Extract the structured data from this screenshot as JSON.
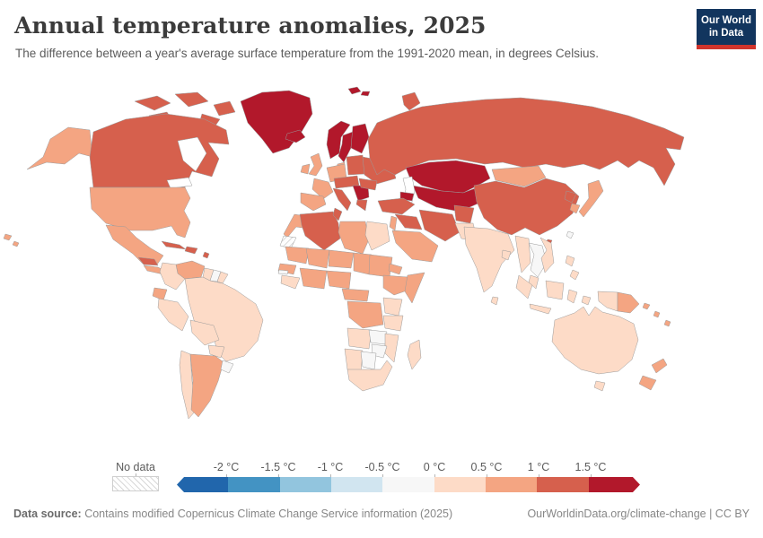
{
  "header": {
    "title": "Annual temperature anomalies, 2025",
    "subtitle": "The difference between a year's average surface temperature from the 1991-2020 mean, in degrees Celsius.",
    "logo": {
      "line1": "Our World",
      "line2": "in Data",
      "bg_color": "#12355e",
      "accent_color": "#d0342c"
    }
  },
  "legend": {
    "no_data_label": "No data",
    "tick_labels": [
      "-2 °C",
      "-1.5 °C",
      "-1 °C",
      "-0.5 °C",
      "0 °C",
      "0.5 °C",
      "1 °C",
      "1.5 °C"
    ],
    "colors": [
      "#2166ac",
      "#4393c3",
      "#92c5de",
      "#d1e5f0",
      "#f7f7f7",
      "#fddbc7",
      "#f4a582",
      "#d6604d",
      "#b2182b"
    ]
  },
  "footer": {
    "source_label": "Data source:",
    "source_text": " Contains modified Copernicus Climate Change Service information (2025)",
    "credit": "OurWorldinData.org/climate-change | CC BY"
  },
  "chart_data": {
    "type": "heatmap",
    "variant": "world-choropleth",
    "title": "Annual temperature anomalies, 2025",
    "unit": "°C",
    "value_label": "Difference from 1991-2020 mean surface temperature",
    "bin_edges": [
      -2,
      -1.5,
      -1,
      -0.5,
      0,
      0.5,
      1,
      1.5
    ],
    "bin_colors": [
      "#2166ac",
      "#4393c3",
      "#92c5de",
      "#d1e5f0",
      "#f7f7f7",
      "#fddbc7",
      "#f4a582",
      "#d6604d",
      "#b2182b"
    ],
    "legend_position": "bottom",
    "no_data": {
      "label": "No data",
      "style": "diagonal-hatch",
      "regions": [
        "Western Sahara"
      ]
    },
    "regions_by_bin": {
      "above_1.5C": [
        "Greenland",
        "Iceland",
        "Svalbard",
        "Norway",
        "Sweden",
        "Finland",
        "Kazakhstan",
        "Uzbekistan",
        "Turkmenistan",
        "Kyrgyzstan",
        "Tajikistan",
        "Caucasus states",
        "Central Balkans"
      ],
      "1_to_1.5C": [
        "Canada",
        "Russia",
        "China",
        "Mongolia-excluded",
        "Algeria",
        "Tunisia",
        "Turkey",
        "Syria",
        "Iraq",
        "Iran",
        "Afghanistan",
        "Poland",
        "Baltic states",
        "Belarus",
        "Ukraine",
        "Romania",
        "Hungary region",
        "Italy",
        "Greece",
        "Cuba",
        "Hispaniola",
        "Guatemala",
        "Honduras",
        "North Korea",
        "Novaya Zemlya"
      ],
      "0.5_to_1C": [
        "United States",
        "Alaska",
        "Hawaii",
        "Mexico",
        "Nicaragua",
        "Costa Rica",
        "Panama",
        "Venezuela",
        "Ecuador",
        "Argentina",
        "United Kingdom",
        "Ireland",
        "France",
        "Spain",
        "Portugal",
        "Germany",
        "Denmark",
        "Levant",
        "Saudi Arabia",
        "Yemen",
        "Mongolia",
        "South Korea",
        "Japan",
        "Nepal",
        "Papua New Guinea",
        "Pacific islands",
        "New Zealand",
        "Morocco",
        "Mauritania",
        "Senegal",
        "Mali",
        "Niger",
        "Chad",
        "Sudan",
        "Libya",
        "Nigeria",
        "Ghana coast",
        "Eritrea",
        "Ethiopia",
        "Somalia",
        "Cameroon",
        "Central African Republic",
        "DR Congo"
      ],
      "0_to_0.5C": [
        "Colombia",
        "Guyana",
        "French Guiana",
        "Peru",
        "Brazil",
        "Bolivia",
        "Paraguay",
        "Chile",
        "Egypt",
        "Guinea",
        "Kenya",
        "Uganda",
        "Tanzania",
        "Angola",
        "Mozambique",
        "Namibia",
        "South Africa",
        "Madagascar",
        "Pakistan",
        "India",
        "Sri Lanka",
        "Bangladesh",
        "Myanmar",
        "Vietnam",
        "Malaysia",
        "Philippines",
        "Indonesia",
        "Australia",
        "Tasmania"
      ],
      "minus0.5_to_0C": [
        "Uruguay",
        "Suriname",
        "Gambia",
        "Zambia",
        "Zimbabwe",
        "Botswana",
        "Thailand",
        "Laos",
        "Cambodia",
        "Taiwan"
      ]
    }
  },
  "map": {
    "border_color": "#9b9b9b",
    "ocean_color": "#ffffff",
    "region_colors": {
      "alaska": "#f4a582",
      "canadian_arctic": "#d6604d",
      "canada": "#d6604d",
      "greenland": "#b2182b",
      "iceland": "#b2182b",
      "usa": "#f4a582",
      "hawaii": "#f4a582",
      "mexico": "#f4a582",
      "guatemala_honduras": "#d6604d",
      "nicaragua_panama": "#f4a582",
      "cuba": "#d6604d",
      "hispaniola": "#d6604d",
      "lesser_antilles": "#d6604d",
      "venezuela": "#f4a582",
      "colombia": "#fddbc7",
      "guyana": "#fddbc7",
      "suriname": "#f7f7f7",
      "french_guiana": "#fddbc7",
      "ecuador": "#f4a582",
      "peru": "#fddbc7",
      "brazil": "#fddbc7",
      "bolivia": "#fddbc7",
      "paraguay": "#fddbc7",
      "chile": "#fddbc7",
      "argentina": "#f4a582",
      "uruguay": "#f7f7f7",
      "norway": "#b2182b",
      "sweden": "#b2182b",
      "finland": "#b2182b",
      "denmark": "#f4a582",
      "uk": "#f4a582",
      "ireland": "#f4a582",
      "germany_benelux": "#f4a582",
      "france": "#f4a582",
      "iberia": "#f4a582",
      "central_europe": "#d6604d",
      "poland_baltics": "#d6604d",
      "belarus_ukraine": "#d6604d",
      "italy": "#d6604d",
      "balkans": "#b2182b",
      "romania": "#d6604d",
      "greece": "#d6604d",
      "svalbard": "#b2182b",
      "novaya_zemlya": "#d6604d",
      "russia": "#d6604d",
      "kazakhstan": "#b2182b",
      "central_asia": "#b2182b",
      "caucasus": "#b2182b",
      "turkey": "#d6604d",
      "syria_iraq": "#d6604d",
      "levant": "#f4a582",
      "iran": "#d6604d",
      "saudi_arabia": "#f4a582",
      "afghanistan": "#d6604d",
      "pakistan": "#fddbc7",
      "india": "#fddbc7",
      "nepal": "#f4a582",
      "sri_lanka": "#fddbc7",
      "bangladesh": "#fddbc7",
      "mongolia": "#f4a582",
      "china": "#d6604d",
      "hainan": "#d6604d",
      "north_korea": "#d6604d",
      "south_korea": "#f4a582",
      "japan": "#f4a582",
      "taiwan": "#f7f7f7",
      "myanmar": "#fddbc7",
      "thailand_laos_cambodia": "#f7f7f7",
      "vietnam": "#fddbc7",
      "malaysia": "#fddbc7",
      "philippines": "#fddbc7",
      "borneo": "#fddbc7",
      "sumatra": "#fddbc7",
      "java": "#fddbc7",
      "sulawesi_maluku": "#fddbc7",
      "west_papua": "#fddbc7",
      "papua_new_guinea": "#f4a582",
      "pacific_islands": "#f4a582",
      "australia": "#fddbc7",
      "tasmania": "#fddbc7",
      "new_zealand": "#f4a582",
      "morocco": "#f4a582",
      "algeria": "#d6604d",
      "tunisia": "#d6604d",
      "libya": "#f4a582",
      "egypt": "#fddbc7",
      "mauritania": "#f4a582",
      "senegal": "#f4a582",
      "gambia": "#f7f7f7",
      "guinea_group": "#fddbc7",
      "mali": "#f4a582",
      "niger": "#f4a582",
      "chad": "#f4a582",
      "sudan": "#f4a582",
      "west_african_coast": "#f4a582",
      "nigeria": "#f4a582",
      "eritrea_djibouti": "#f4a582",
      "ethiopia": "#f4a582",
      "somalia": "#f4a582",
      "cameroon_car": "#f4a582",
      "drc": "#f4a582",
      "uganda_kenya": "#fddbc7",
      "tanzania": "#fddbc7",
      "angola": "#fddbc7",
      "zambia": "#f7f7f7",
      "mozambique_malawi": "#fddbc7",
      "zimbabwe": "#f7f7f7",
      "namibia": "#fddbc7",
      "botswana": "#f7f7f7",
      "south_africa": "#fddbc7",
      "madagascar": "#fddbc7"
    }
  }
}
